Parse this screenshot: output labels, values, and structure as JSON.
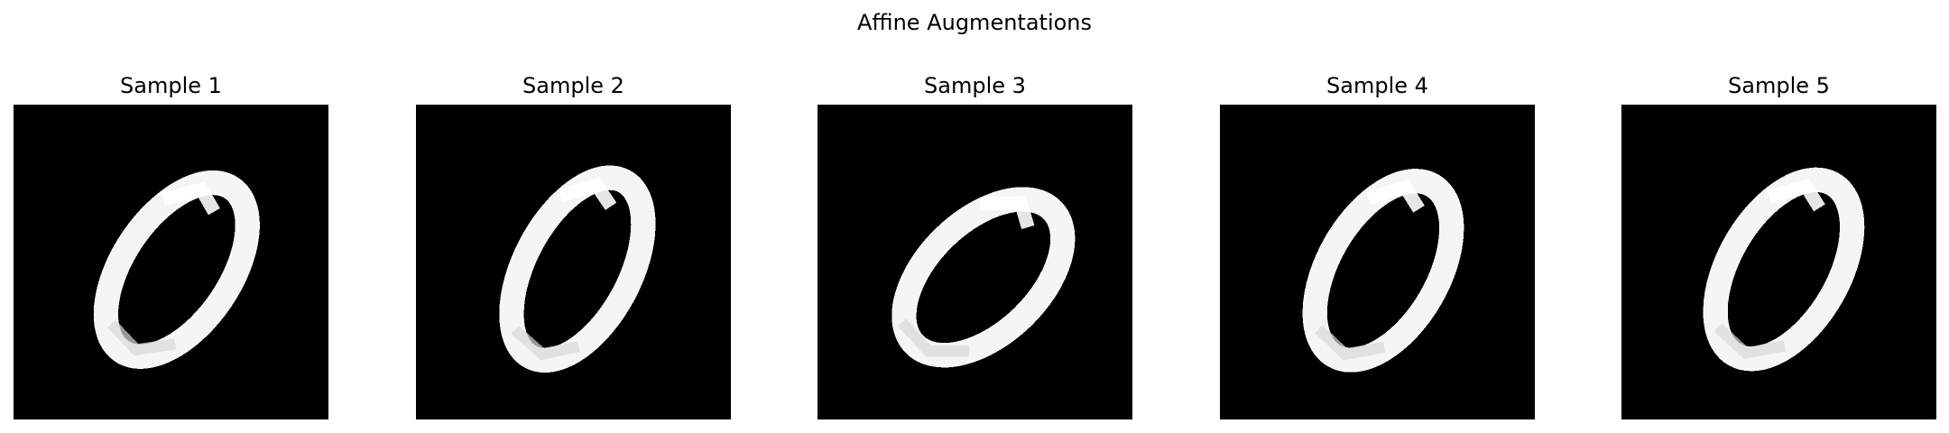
{
  "figure": {
    "title": "Affine Augmentations"
  },
  "colors": {
    "background": "#ffffff",
    "image_background": "#000000",
    "digit_stroke": "#f5f5f5"
  },
  "panels": [
    {
      "title": "Sample 1",
      "image": "handwritten digit 0 (augmented)"
    },
    {
      "title": "Sample 2",
      "image": "handwritten digit 0 (augmented)"
    },
    {
      "title": "Sample 3",
      "image": "handwritten digit 0 (augmented)"
    },
    {
      "title": "Sample 4",
      "image": "handwritten digit 0 (augmented)"
    },
    {
      "title": "Sample 5",
      "image": "handwritten digit 0 (augmented)"
    }
  ]
}
